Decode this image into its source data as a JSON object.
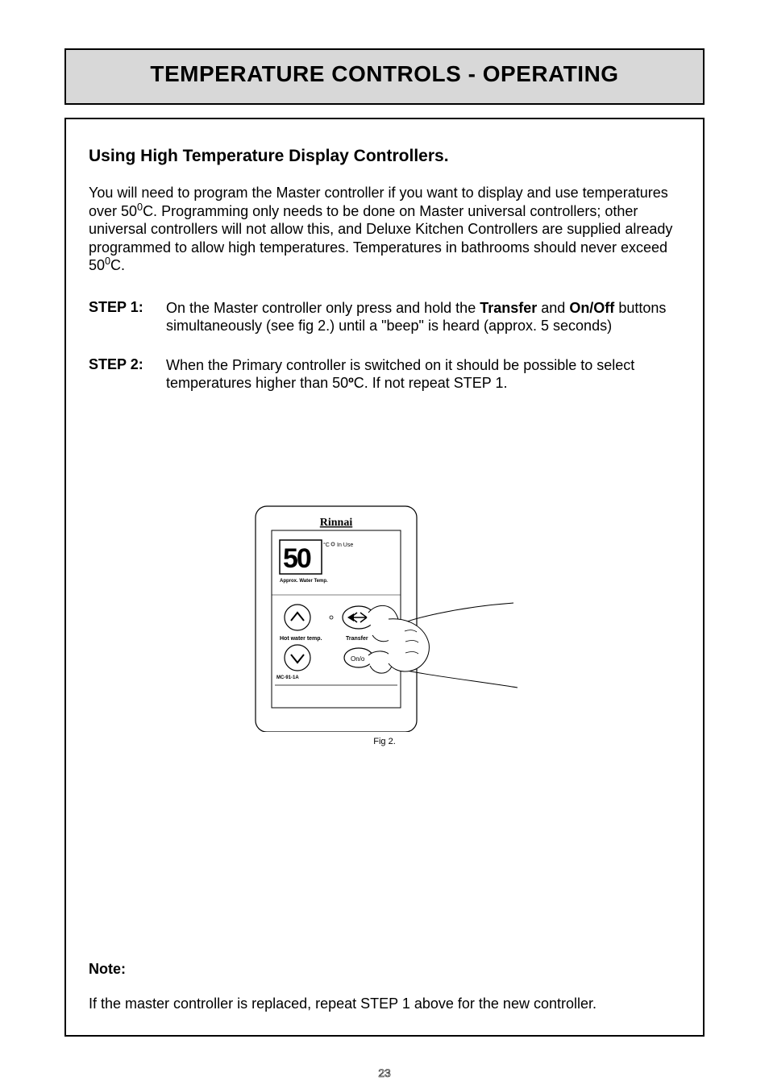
{
  "page_title": "TEMPERATURE CONTROLS - OPERATING",
  "section_title": "Using High Temperature Display Controllers.",
  "intro_html": "You will need to program the Master controller if you want to display and use temperatures over 50<sup>0</sup>C.  Programming only needs to be done on Master universal controllers; other universal controllers will not allow this, and Deluxe Kitchen Controllers are supplied already programmed to allow high temperatures.  Temperatures in bathrooms should never exceed 50<sup>0</sup>C.",
  "steps": [
    {
      "label": "STEP 1:",
      "html": "On the Master controller only press and hold the <b>Transfer</b> and <b>On/Off</b> buttons simultaneously (see fig 2.) until a \"beep\" is heard (approx. 5 seconds)"
    },
    {
      "label": "STEP 2:",
      "html": "When the Primary controller is switched on it should be possible to select temperatures higher than 50<b>º</b>C. If not repeat STEP 1."
    }
  ],
  "figure": {
    "brand": "Rinnai",
    "display_value": "50",
    "display_unit": "°C",
    "in_use_label": "In Use",
    "display_caption": "Approx. Water Temp.",
    "hot_water_label": "Hot water temp.",
    "transfer_label": "Transfer",
    "on_label": "On/o",
    "model": "MC-91-1A",
    "caption": "Fig 2."
  },
  "note": {
    "label": "Note:",
    "text": "If the master controller is replaced, repeat STEP 1 above for the new controller."
  },
  "page_number": "23",
  "colors": {
    "title_bg": "#d8d8d8",
    "border": "#000000",
    "text": "#000000",
    "page_bg": "#ffffff"
  }
}
